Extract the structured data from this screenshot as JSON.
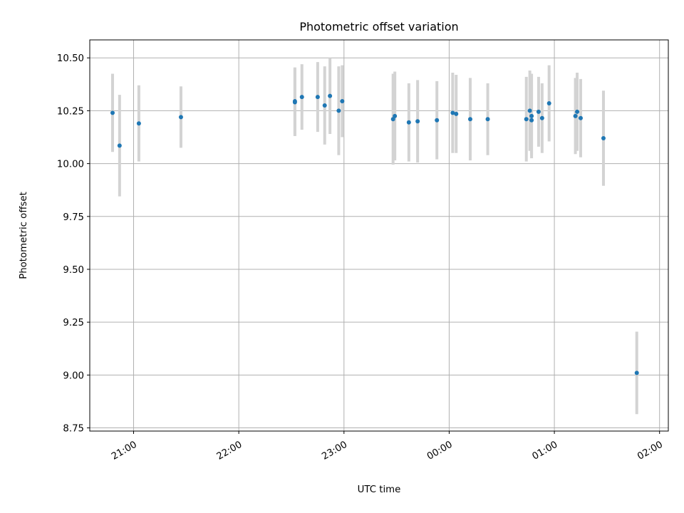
{
  "chart_data": {
    "type": "scatter",
    "title": "Photometric offset variation",
    "xlabel": "UTC time",
    "ylabel": "Photometric offset",
    "grid": true,
    "colors": {
      "points": "#1f77b4",
      "errorbars": "#d3d3d3",
      "grid": "#b0b0b0",
      "axes": "#000000"
    },
    "xlim": [
      "20:35",
      "02:05"
    ],
    "ylim": [
      8.735,
      10.585
    ],
    "x_ticks": [
      "21:00",
      "22:00",
      "23:00",
      "00:00",
      "01:00",
      "02:00"
    ],
    "y_ticks": [
      "8.75",
      "9.00",
      "9.25",
      "9.50",
      "9.75",
      "10.00",
      "10.25",
      "10.50"
    ],
    "x": [
      "20:48",
      "20:52",
      "21:03",
      "21:27",
      "22:32",
      "22:32",
      "22:36",
      "22:45",
      "22:49",
      "22:52",
      "22:57",
      "22:59",
      "23:28",
      "23:29",
      "23:37",
      "23:42",
      "23:53",
      "00:02",
      "00:04",
      "00:12",
      "00:22",
      "00:44",
      "00:46",
      "00:47",
      "00:47",
      "00:51",
      "00:53",
      "00:57",
      "01:12",
      "01:13",
      "01:15",
      "01:28",
      "01:47"
    ],
    "y": [
      10.24,
      10.085,
      10.19,
      10.22,
      10.29,
      10.295,
      10.315,
      10.315,
      10.275,
      10.32,
      10.25,
      10.295,
      10.21,
      10.225,
      10.195,
      10.2,
      10.205,
      10.24,
      10.235,
      10.21,
      10.21,
      10.21,
      10.25,
      10.205,
      10.225,
      10.245,
      10.215,
      10.285,
      10.225,
      10.245,
      10.215,
      10.12,
      9.01
    ],
    "yerr": [
      0.185,
      0.24,
      0.18,
      0.145,
      0.16,
      0.16,
      0.155,
      0.165,
      0.185,
      0.18,
      0.21,
      0.17,
      0.215,
      0.21,
      0.185,
      0.195,
      0.185,
      0.19,
      0.185,
      0.195,
      0.17,
      0.2,
      0.19,
      0.165,
      0.2,
      0.165,
      0.165,
      0.18,
      0.18,
      0.185,
      0.185,
      0.225,
      0.195
    ]
  }
}
